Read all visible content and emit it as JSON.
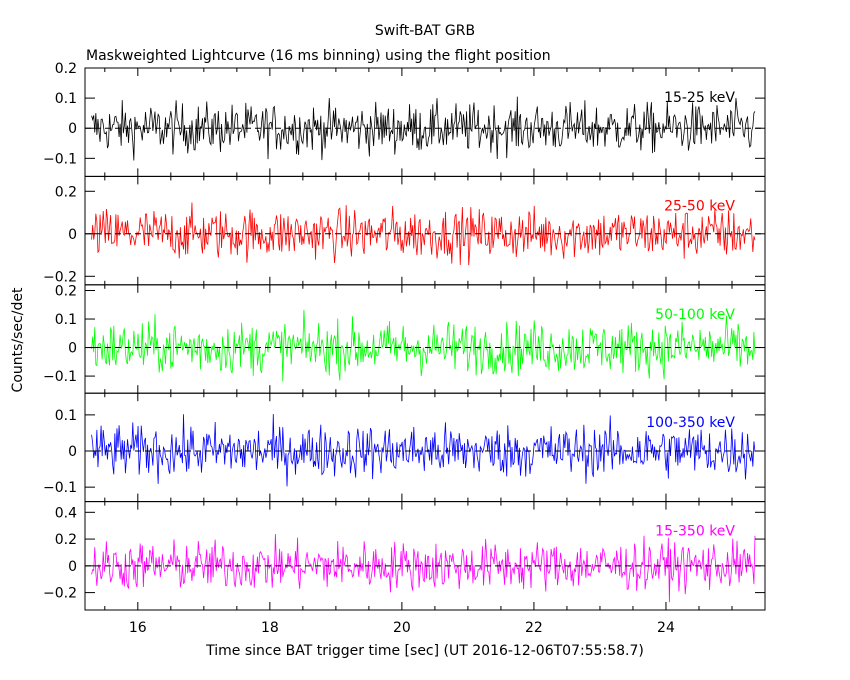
{
  "chart_data": {
    "type": "line",
    "title": "Swift-BAT GRB",
    "subtitle": "Maskweighted Lightcurve (16 ms binning) using the flight position",
    "xlabel": "Time since BAT trigger time [sec] (UT 2016-12-06T07:55:58.7)",
    "ylabel": "Counts/sec/det",
    "xlim": [
      15.2,
      25.5
    ],
    "x_ticks": [
      16,
      18,
      20,
      22,
      24
    ],
    "x_tick_labels": [
      "16",
      "18",
      "20",
      "22",
      "24"
    ],
    "x_data_range": [
      15.3,
      25.35
    ],
    "bin_width_sec": 0.016,
    "panels": [
      {
        "band": "15-25 keV",
        "color": "#000000",
        "ylim": [
          -0.16,
          0.2
        ],
        "y_ticks": [
          -0.1,
          0,
          0.1,
          0.2
        ],
        "y_tick_labels": [
          "−0.1",
          "0",
          "0.1",
          "0.2"
        ],
        "noise_amplitude": 0.09
      },
      {
        "band": "25-50 keV",
        "color": "#ff0000",
        "ylim": [
          -0.24,
          0.27
        ],
        "y_ticks": [
          -0.2,
          0,
          0.2
        ],
        "y_tick_labels": [
          "−0.2",
          "0",
          "0.2"
        ],
        "noise_amplitude": 0.13
      },
      {
        "band": "50-100 keV",
        "color": "#00ff00",
        "ylim": [
          -0.16,
          0.22
        ],
        "y_ticks": [
          -0.1,
          0,
          0.1,
          0.2
        ],
        "y_tick_labels": [
          "−0.1",
          "0",
          "0.1",
          "0.2"
        ],
        "noise_amplitude": 0.1
      },
      {
        "band": "100-350 keV",
        "color": "#0000ff",
        "ylim": [
          -0.14,
          0.16
        ],
        "y_ticks": [
          -0.1,
          0,
          0.1
        ],
        "y_tick_labels": [
          "−0.1",
          "0",
          "0.1"
        ],
        "noise_amplitude": 0.08
      },
      {
        "band": "15-350 keV",
        "color": "#ff00ff",
        "ylim": [
          -0.33,
          0.48
        ],
        "y_ticks": [
          -0.2,
          0,
          0.2,
          0.4
        ],
        "y_tick_labels": [
          "−0.2",
          "0",
          "0.2",
          "0.4"
        ],
        "noise_amplitude": 0.2
      }
    ]
  }
}
